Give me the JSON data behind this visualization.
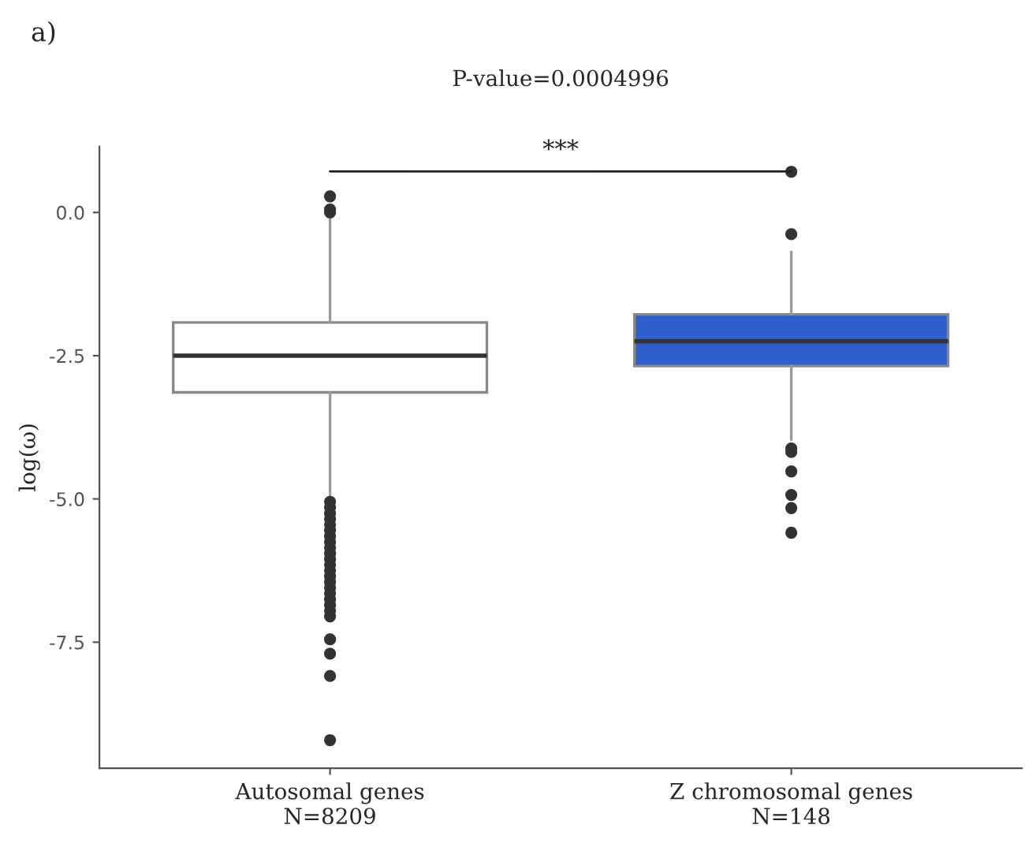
{
  "chart_data": {
    "type": "box",
    "ylabel": "log(ω)",
    "categories": [
      "Autosomal genes\nN=8209",
      "Z chromosomal genes\nN=148"
    ],
    "colors": [
      "#ffffff",
      "#2e5fcc"
    ],
    "boxes": [
      {
        "low": -4.97,
        "q1": -3.14,
        "median": -2.5,
        "q3": -1.92,
        "high": -0.1,
        "outliers": [
          0.28,
          0.05,
          0.0,
          -5.05,
          -5.15,
          -5.25,
          -5.35,
          -5.45,
          -5.55,
          -5.65,
          -5.75,
          -5.85,
          -5.95,
          -6.05,
          -6.15,
          -6.25,
          -6.35,
          -6.45,
          -6.55,
          -6.65,
          -6.75,
          -6.85,
          -6.95,
          -7.05,
          -7.45,
          -7.7,
          -8.09,
          -9.21
        ]
      },
      {
        "low": -3.97,
        "q1": -2.68,
        "median": -2.25,
        "q3": -1.78,
        "high": -0.69,
        "outliers": [
          0.71,
          -0.38,
          -4.12,
          -4.18,
          -4.52,
          -4.93,
          -5.16,
          -5.59
        ]
      }
    ],
    "ylim": [
      -9.7,
      1.15
    ],
    "yticks": [
      {
        "value": 0,
        "label": "0.0"
      },
      -2.5,
      {
        "value": -5,
        "label": "-5.0"
      },
      -7.5
    ],
    "annotations": [
      "a)",
      "P-value=0.0004996",
      "***"
    ],
    "grid": false
  }
}
